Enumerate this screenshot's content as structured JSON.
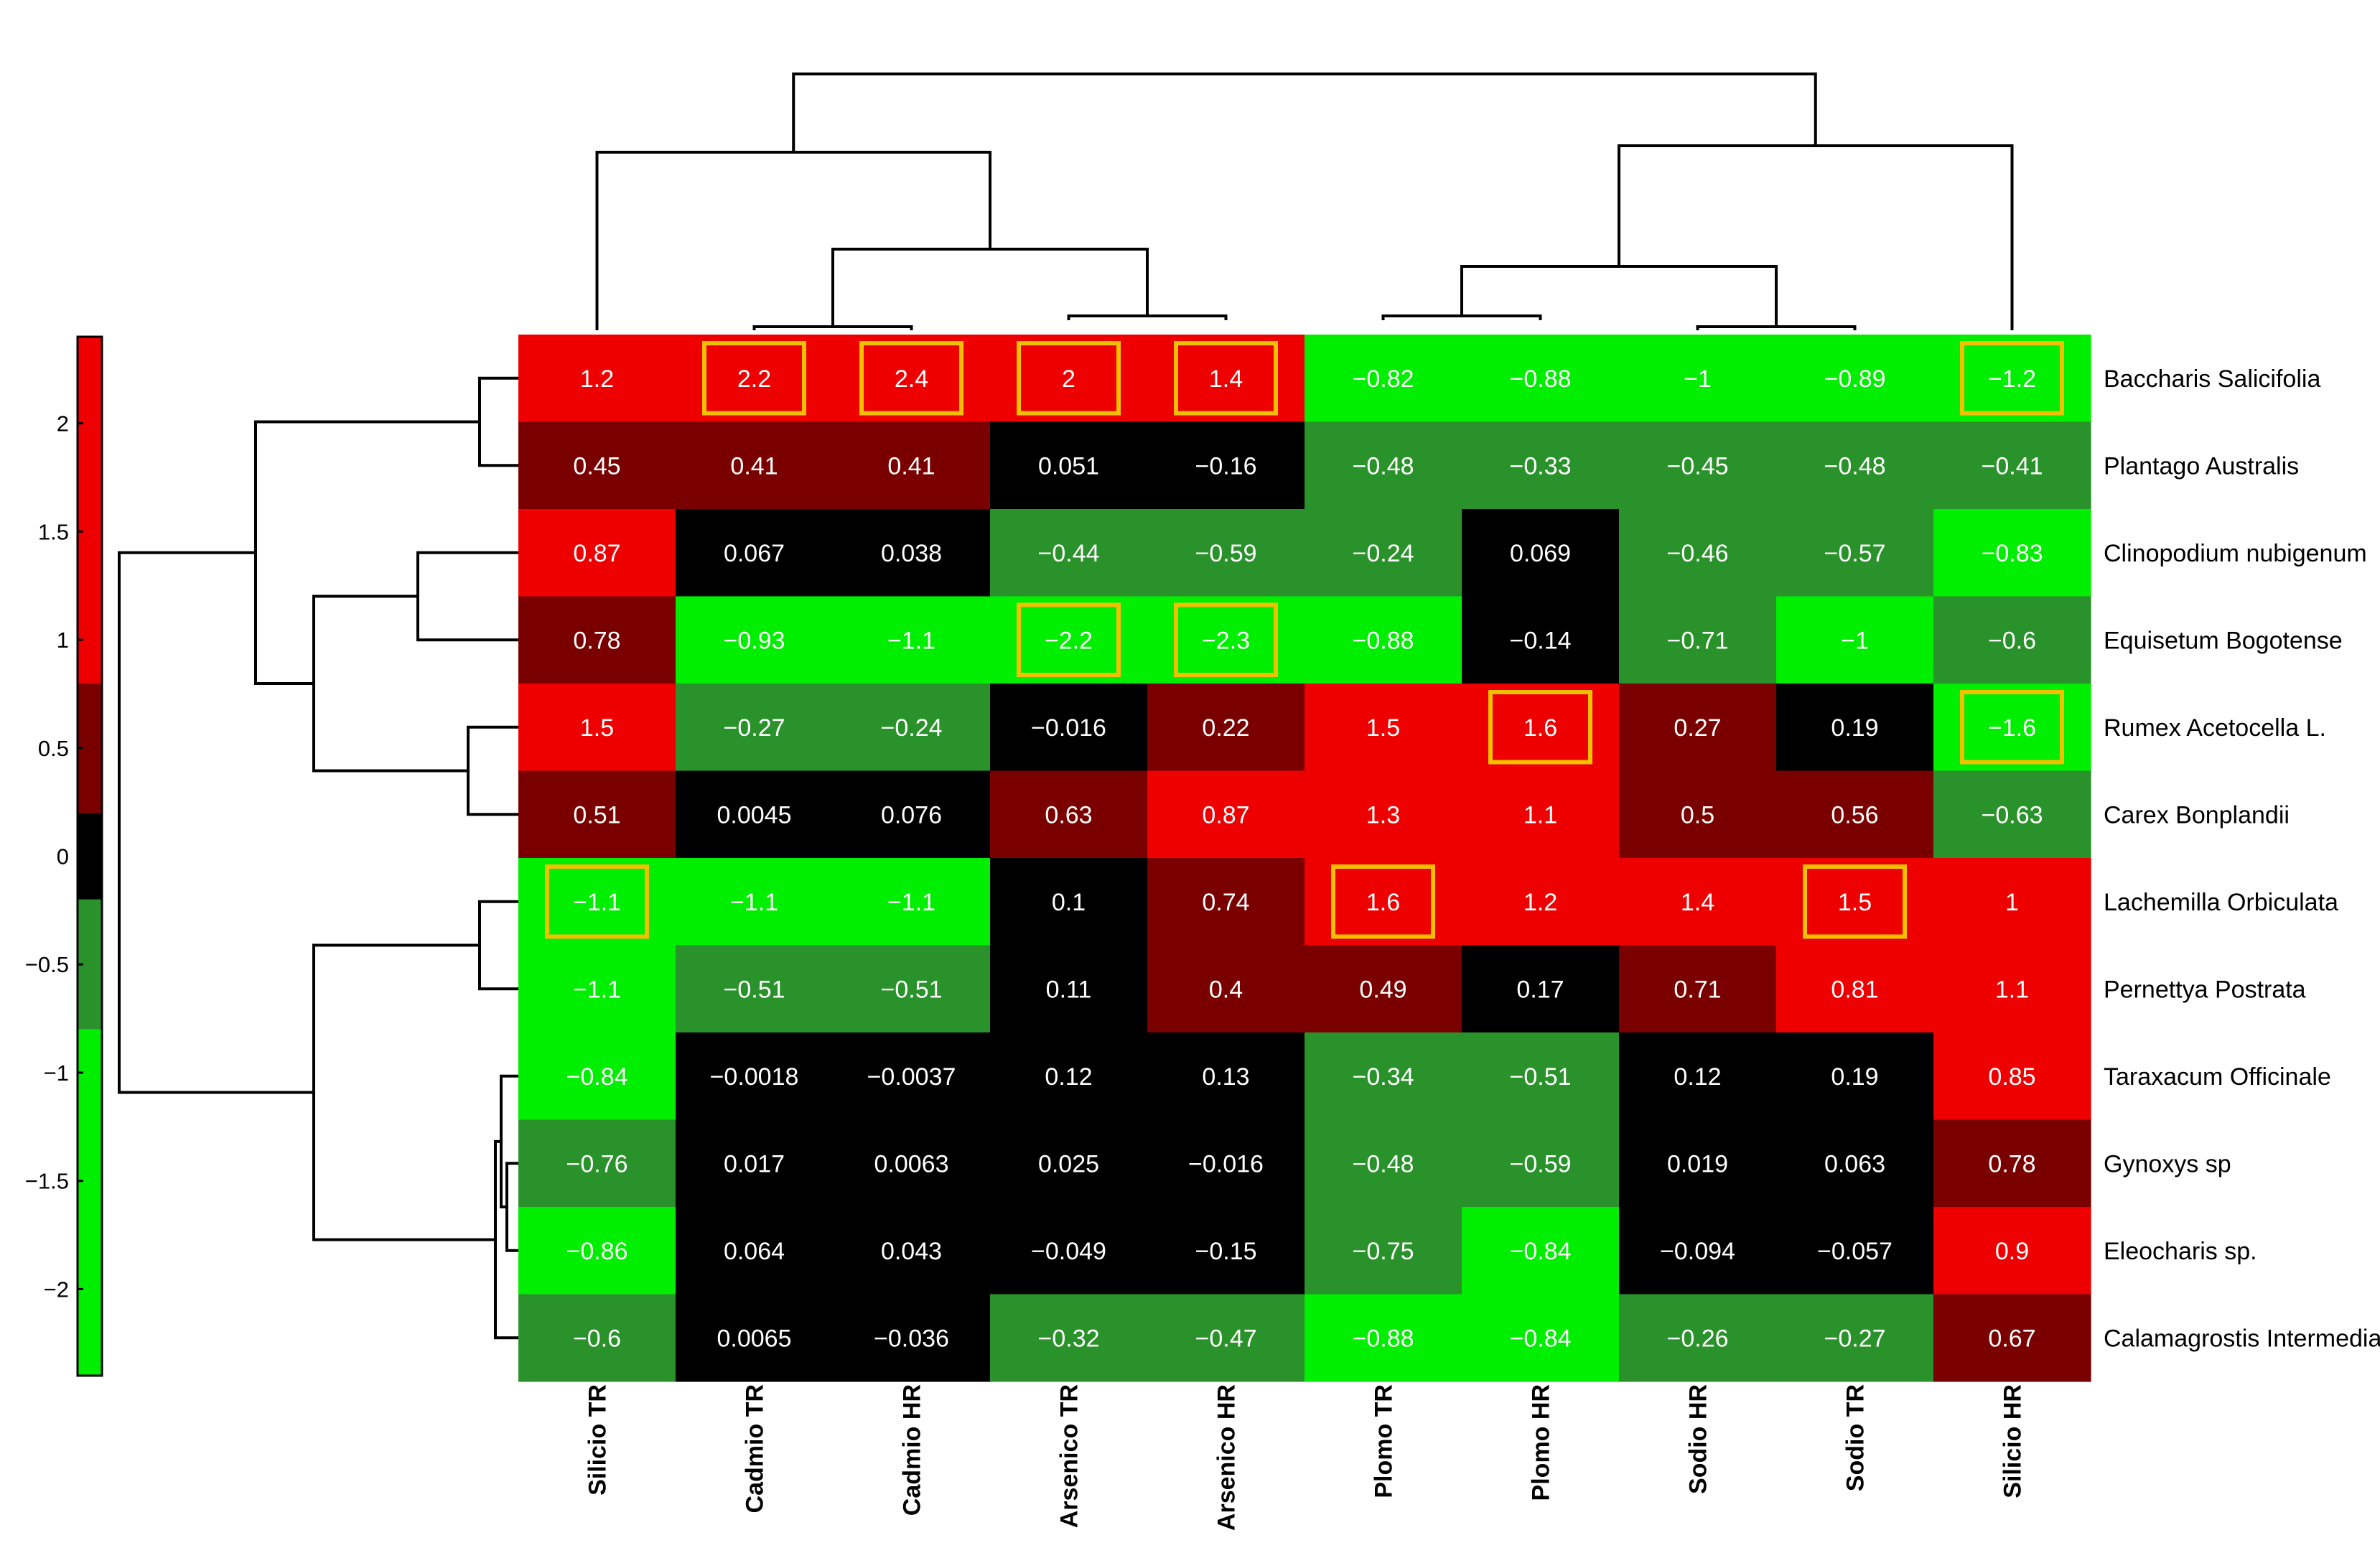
{
  "chart_data": {
    "type": "heatmap",
    "title": "",
    "columns": [
      "Silicio TR",
      "Cadmio TR",
      "Cadmio HR",
      "Arsenico TR",
      "Arsenico HR",
      "Plomo TR",
      "Plomo HR",
      "Sodio HR",
      "Sodio TR",
      "Silicio HR"
    ],
    "rows": [
      "Baccharis Salicifolia",
      "Plantago Australis",
      "Clinopodium nubigenum",
      "Equisetum Bogotense",
      "Rumex Acetocella L.",
      "Carex Bonplandii",
      "Lachemilla Orbiculata",
      "Pernettya Postrata",
      "Taraxacum Officinale",
      "Gynoxys sp",
      "Eleocharis sp.",
      "Calamagrostis Intermedia"
    ],
    "values": [
      [
        1.2,
        2.2,
        2.4,
        2,
        1.4,
        -0.82,
        -0.88,
        -1,
        -0.89,
        -1.2
      ],
      [
        0.45,
        0.41,
        0.41,
        0.051,
        -0.16,
        -0.48,
        -0.33,
        -0.45,
        -0.48,
        -0.41
      ],
      [
        0.87,
        0.067,
        0.038,
        -0.44,
        -0.59,
        -0.24,
        0.069,
        -0.46,
        -0.57,
        -0.83
      ],
      [
        0.78,
        -0.93,
        -1.1,
        -2.2,
        -2.3,
        -0.88,
        -0.14,
        -0.71,
        -1,
        -0.6
      ],
      [
        1.5,
        -0.27,
        -0.24,
        -0.016,
        0.22,
        1.5,
        1.6,
        0.27,
        0.19,
        -1.6
      ],
      [
        0.51,
        0.0045,
        0.076,
        0.63,
        0.87,
        1.3,
        1.1,
        0.5,
        0.56,
        -0.63
      ],
      [
        -1.1,
        -1.1,
        -1.1,
        0.1,
        0.74,
        1.6,
        1.2,
        1.4,
        1.5,
        1
      ],
      [
        -1.1,
        -0.51,
        -0.51,
        0.11,
        0.4,
        0.49,
        0.17,
        0.71,
        0.81,
        1.1
      ],
      [
        -0.84,
        -0.0018,
        -0.0037,
        0.12,
        0.13,
        -0.34,
        -0.51,
        0.12,
        0.19,
        0.85
      ],
      [
        -0.76,
        0.017,
        0.0063,
        0.025,
        -0.016,
        -0.48,
        -0.59,
        0.019,
        0.063,
        0.78
      ],
      [
        -0.86,
        0.064,
        0.043,
        -0.049,
        -0.15,
        -0.75,
        -0.84,
        -0.094,
        -0.057,
        0.9
      ],
      [
        -0.6,
        0.0065,
        -0.036,
        -0.32,
        -0.47,
        -0.88,
        -0.84,
        -0.26,
        -0.27,
        0.67
      ]
    ],
    "labels": [
      [
        "1.2",
        "2.2",
        "2.4",
        "2",
        "1.4",
        "−0.82",
        "−0.88",
        "−1",
        "−0.89",
        "−1.2"
      ],
      [
        "0.45",
        "0.41",
        "0.41",
        "0.051",
        "−0.16",
        "−0.48",
        "−0.33",
        "−0.45",
        "−0.48",
        "−0.41"
      ],
      [
        "0.87",
        "0.067",
        "0.038",
        "−0.44",
        "−0.59",
        "−0.24",
        "0.069",
        "−0.46",
        "−0.57",
        "−0.83"
      ],
      [
        "0.78",
        "−0.93",
        "−1.1",
        "−2.2",
        "−2.3",
        "−0.88",
        "−0.14",
        "−0.71",
        "−1",
        "−0.6"
      ],
      [
        "1.5",
        "−0.27",
        "−0.24",
        "−0.016",
        "0.22",
        "1.5",
        "1.6",
        "0.27",
        "0.19",
        "−1.6"
      ],
      [
        "0.51",
        "0.0045",
        "0.076",
        "0.63",
        "0.87",
        "1.3",
        "1.1",
        "0.5",
        "0.56",
        "−0.63"
      ],
      [
        "−1.1",
        "−1.1",
        "−1.1",
        "0.1",
        "0.74",
        "1.6",
        "1.2",
        "1.4",
        "1.5",
        "1"
      ],
      [
        "−1.1",
        "−0.51",
        "−0.51",
        "0.11",
        "0.4",
        "0.49",
        "0.17",
        "0.71",
        "0.81",
        "1.1"
      ],
      [
        "−0.84",
        "−0.0018",
        "−0.0037",
        "0.12",
        "0.13",
        "−0.34",
        "−0.51",
        "0.12",
        "0.19",
        "0.85"
      ],
      [
        "−0.76",
        "0.017",
        "0.0063",
        "0.025",
        "−0.016",
        "−0.48",
        "−0.59",
        "0.019",
        "0.063",
        "0.78"
      ],
      [
        "−0.86",
        "0.064",
        "0.043",
        "−0.049",
        "−0.15",
        "−0.75",
        "−0.84",
        "−0.094",
        "−0.057",
        "0.9"
      ],
      [
        "−0.6",
        "0.0065",
        "−0.036",
        "−0.32",
        "−0.47",
        "−0.88",
        "−0.84",
        "−0.26",
        "−0.27",
        "0.67"
      ]
    ],
    "highlighted_cells": [
      [
        0,
        1
      ],
      [
        0,
        2
      ],
      [
        0,
        3
      ],
      [
        0,
        4
      ],
      [
        0,
        9
      ],
      [
        3,
        3
      ],
      [
        3,
        4
      ],
      [
        4,
        6
      ],
      [
        4,
        9
      ],
      [
        6,
        0
      ],
      [
        6,
        5
      ],
      [
        6,
        8
      ]
    ],
    "colorbar": {
      "range": [
        -2.4,
        2.4
      ],
      "ticks": [
        2,
        1.5,
        1,
        0.5,
        0,
        -0.5,
        -1,
        -1.5,
        -2
      ],
      "tick_labels": [
        "2",
        "1.5",
        "1",
        "0.5",
        "0",
        "−0.5",
        "−1",
        "−1.5",
        "−2"
      ],
      "levels": [
        "#00ee00",
        "#2a922a",
        "#000000",
        "#7a0000",
        "#ee0000"
      ],
      "level_bounds": [
        -2.4,
        -0.8,
        -0.2,
        0.2,
        0.8,
        2.4
      ]
    },
    "legend_position": "left",
    "grid": false,
    "colors": {
      "bright_red": "#ee0000",
      "dark_red": "#7a0000",
      "black": "#000000",
      "dark_green": "#2a922a",
      "bright_green": "#00ee00",
      "highlight_box": "#f2c000",
      "dendrogram": "#000000"
    }
  }
}
